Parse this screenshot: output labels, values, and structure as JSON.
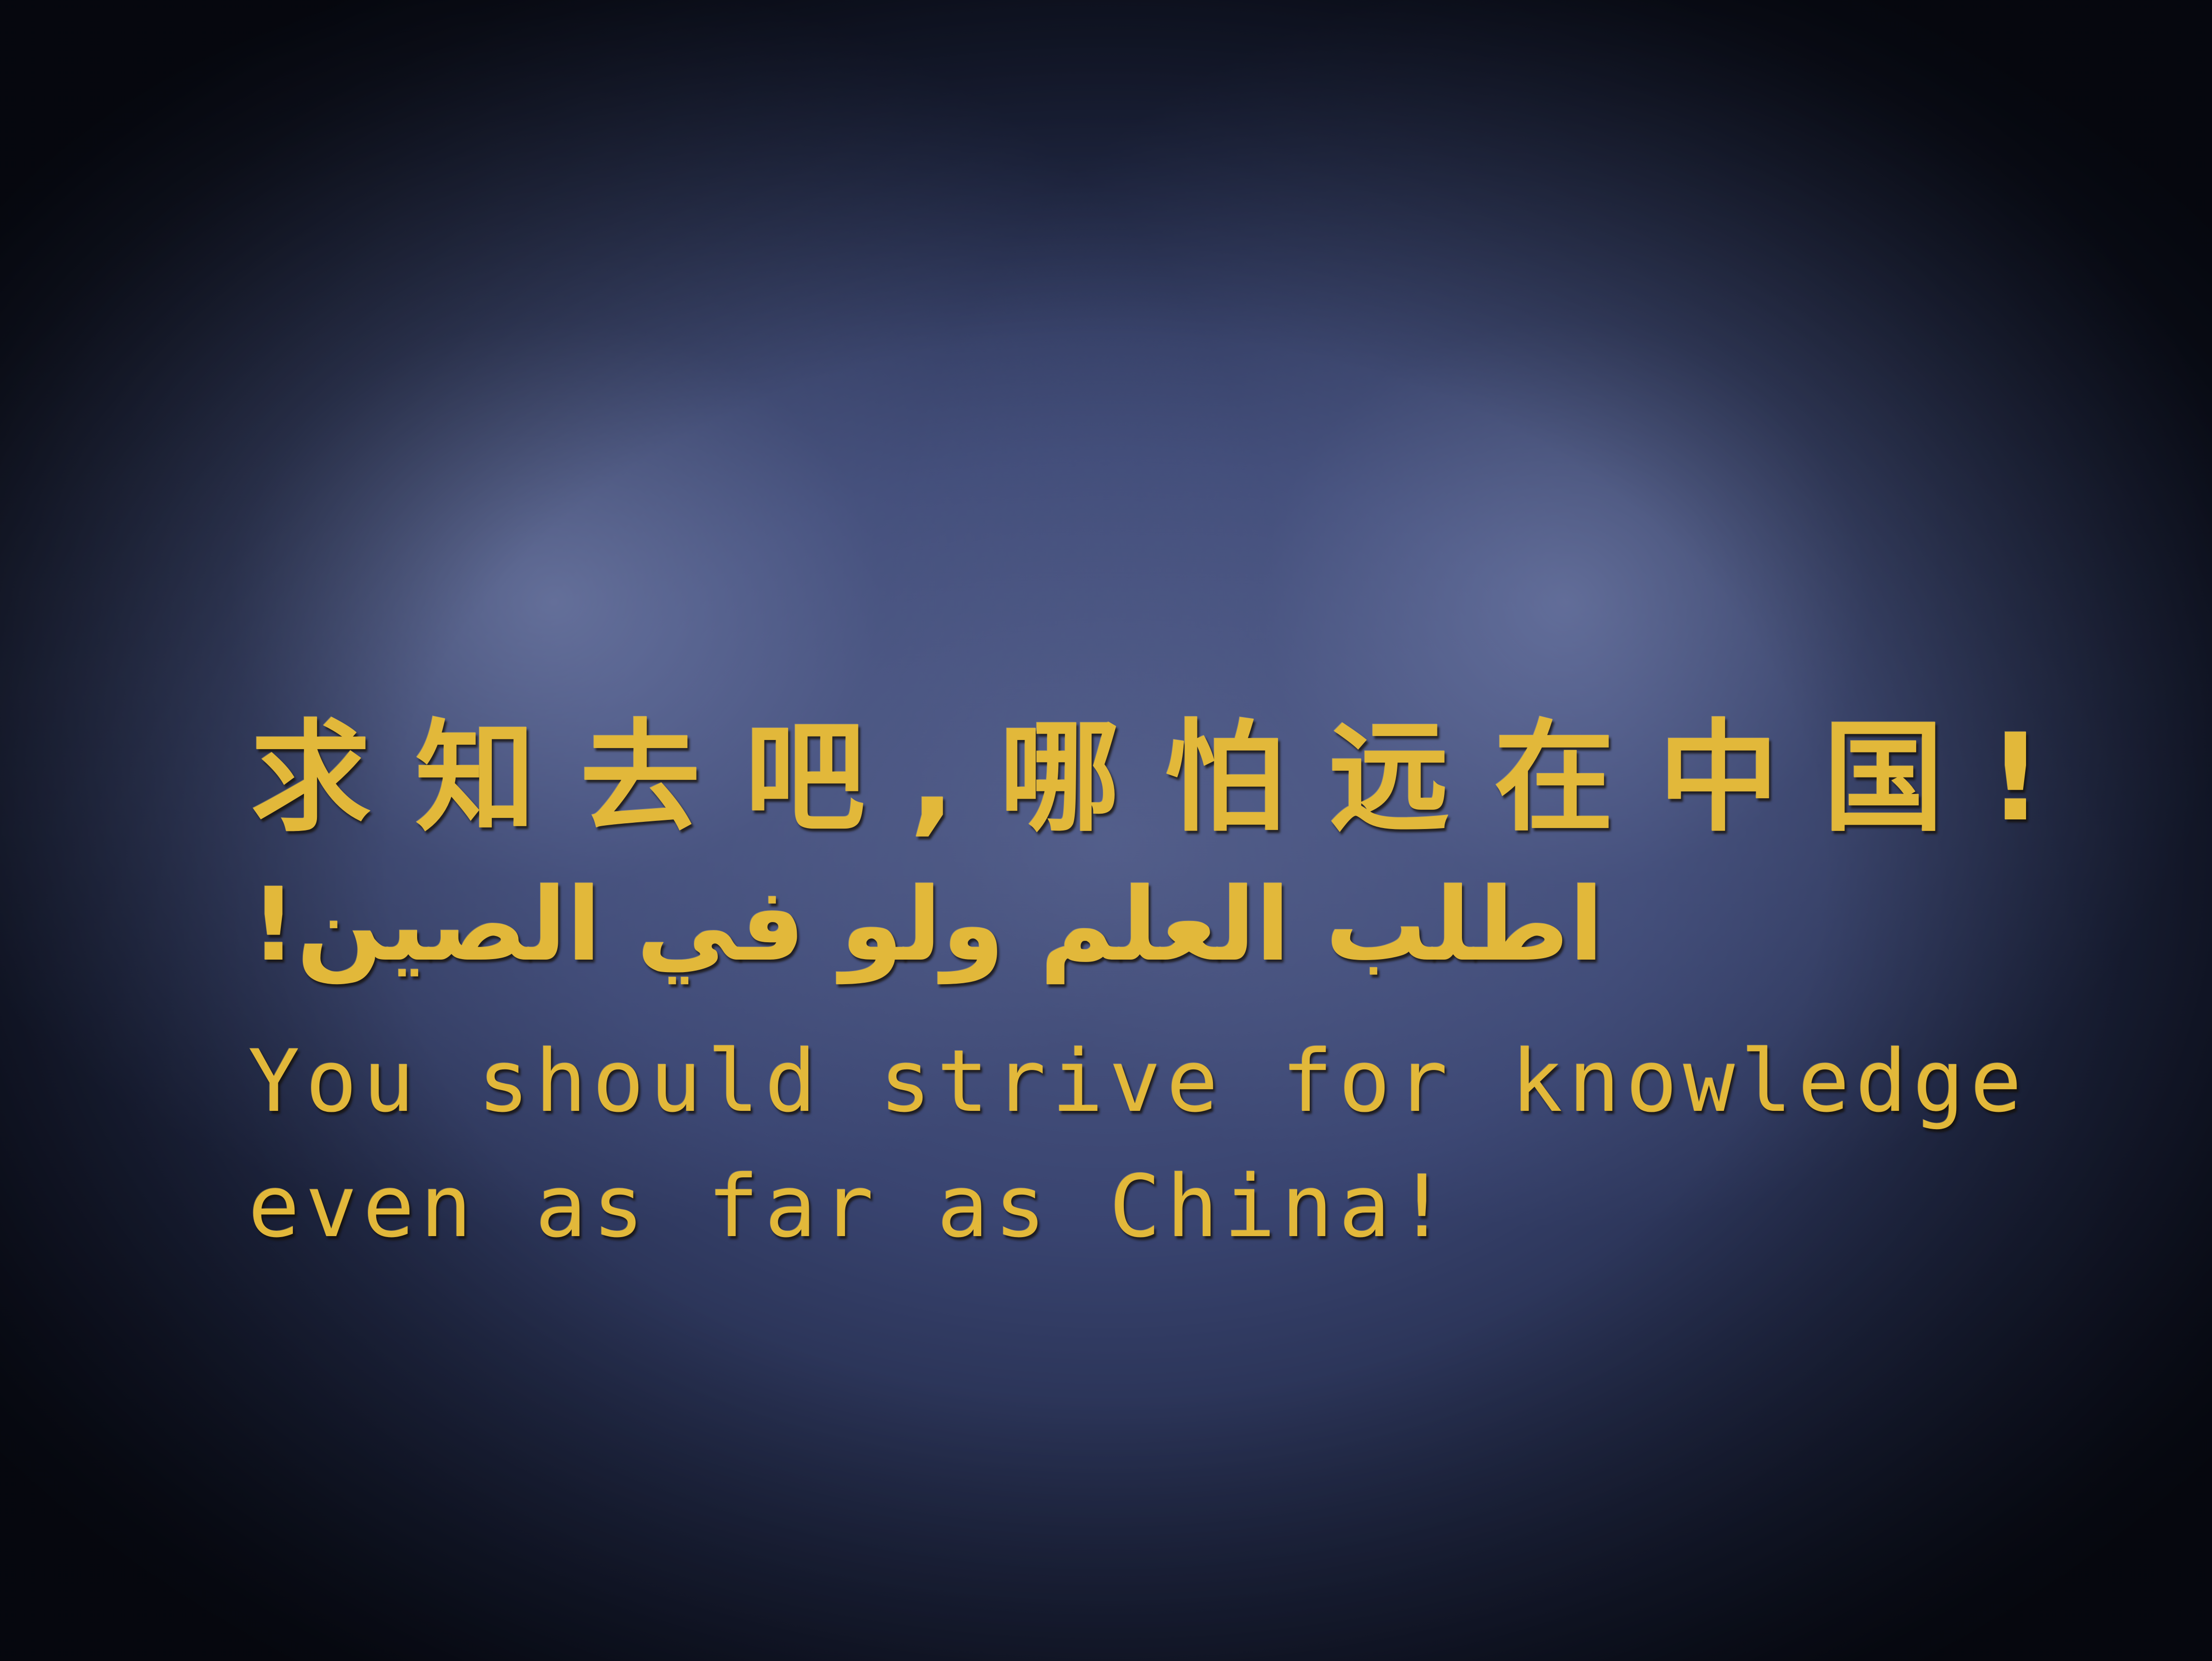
{
  "sign": {
    "chinese": "求知去吧,哪怕远在中国!",
    "arabic": "اطلب العلم ولو في الصين!",
    "english_line1": "You should strive for knowledge",
    "english_line2": "even as far as China!"
  },
  "colors": {
    "wall": "#394470",
    "lettering": "#e2b83a"
  }
}
